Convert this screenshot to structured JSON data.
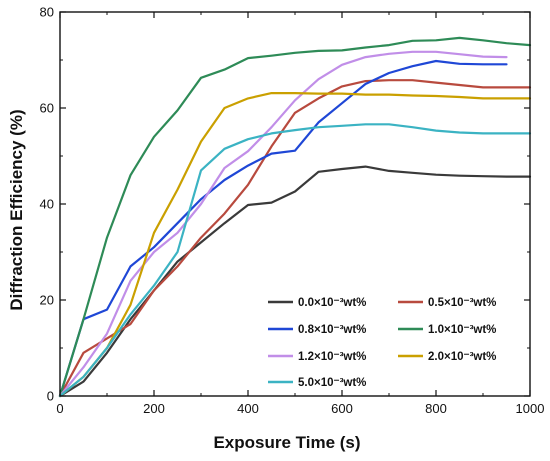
{
  "chart_data": {
    "type": "line",
    "title": "",
    "xlabel": "Exposure Time (s)",
    "ylabel": "Diffraction Efficiency (%)",
    "xlim": [
      0,
      1000
    ],
    "ylim": [
      0,
      80
    ],
    "xticks": [
      0,
      200,
      400,
      600,
      800,
      1000
    ],
    "yticks": [
      0,
      20,
      40,
      60,
      80
    ],
    "grid": false,
    "legend_position": "bottom-right",
    "series": [
      {
        "name": "0.0×10⁻³wt%",
        "color": "#3a3a3a",
        "x": [
          0,
          50,
          100,
          150,
          200,
          250,
          300,
          350,
          400,
          450,
          500,
          550,
          600,
          650,
          700,
          750,
          800,
          850,
          900,
          950,
          1000
        ],
        "y": [
          0,
          3,
          9,
          16,
          22,
          28,
          32,
          36,
          39.8,
          40.3,
          42.6,
          46.7,
          47.3,
          47.8,
          46.9,
          46.5,
          46.1,
          45.9,
          45.8,
          45.7,
          45.7
        ]
      },
      {
        "name": "0.5×10⁻³wt%",
        "color": "#b84a3e",
        "x": [
          0,
          50,
          100,
          150,
          200,
          250,
          300,
          350,
          400,
          450,
          500,
          550,
          600,
          650,
          700,
          750,
          800,
          850,
          900,
          950,
          1000
        ],
        "y": [
          0,
          9,
          12,
          15,
          22,
          27,
          33,
          38,
          44,
          52,
          59,
          62,
          64.5,
          65.6,
          65.8,
          65.8,
          65.3,
          64.8,
          64.3,
          64.3,
          64.3
        ]
      },
      {
        "name": "0.8×10⁻³wt%",
        "color": "#1f47d6",
        "x": [
          0,
          50,
          100,
          150,
          200,
          250,
          300,
          350,
          400,
          450,
          500,
          550,
          600,
          650,
          700,
          750,
          800,
          850,
          900,
          950
        ],
        "y": [
          0,
          16,
          18,
          27,
          31,
          36,
          41,
          45,
          48,
          50.5,
          51.1,
          57,
          61,
          65,
          67.3,
          68.7,
          69.8,
          69.2,
          69.1,
          69.1
        ]
      },
      {
        "name": "1.0×10⁻³wt%",
        "color": "#2e8b57",
        "x": [
          0,
          50,
          100,
          150,
          200,
          250,
          300,
          350,
          400,
          450,
          500,
          550,
          600,
          650,
          700,
          750,
          800,
          850,
          900,
          950,
          1000
        ],
        "y": [
          0,
          16,
          33,
          46,
          54,
          59.5,
          66.3,
          68,
          70.4,
          70.9,
          71.5,
          71.9,
          72,
          72.6,
          73.1,
          74,
          74.1,
          74.6,
          74.1,
          73.5,
          73.1
        ]
      },
      {
        "name": "1.2×10⁻³wt%",
        "color": "#c18ee8",
        "x": [
          0,
          50,
          100,
          150,
          200,
          250,
          300,
          350,
          400,
          450,
          500,
          550,
          600,
          650,
          700,
          750,
          800,
          850,
          900,
          950
        ],
        "y": [
          0,
          6,
          13,
          24,
          30,
          34,
          40,
          47.5,
          51,
          56,
          61.6,
          66,
          69,
          70.6,
          71.3,
          71.7,
          71.7,
          71.2,
          70.7,
          70.6
        ]
      },
      {
        "name": "2.0×10⁻³wt%",
        "color": "#caa000",
        "x": [
          0,
          50,
          100,
          150,
          200,
          250,
          300,
          350,
          400,
          450,
          500,
          550,
          600,
          650,
          700,
          750,
          800,
          850,
          900,
          950,
          1000
        ],
        "y": [
          0,
          4,
          10,
          19,
          34,
          43,
          53,
          60,
          62,
          63.1,
          63.1,
          63,
          63,
          62.8,
          62.8,
          62.6,
          62.5,
          62.3,
          62,
          62,
          62
        ]
      },
      {
        "name": "5.0×10⁻³wt%",
        "color": "#3bb3c3",
        "x": [
          0,
          50,
          100,
          150,
          200,
          250,
          300,
          350,
          400,
          450,
          500,
          550,
          600,
          650,
          700,
          750,
          800,
          850,
          900,
          950,
          1000
        ],
        "y": [
          0,
          4,
          10,
          17,
          23,
          30,
          47,
          51.5,
          53.5,
          54.7,
          55.4,
          56,
          56.3,
          56.6,
          56.6,
          56,
          55.3,
          54.9,
          54.7,
          54.7,
          54.7
        ]
      }
    ]
  }
}
